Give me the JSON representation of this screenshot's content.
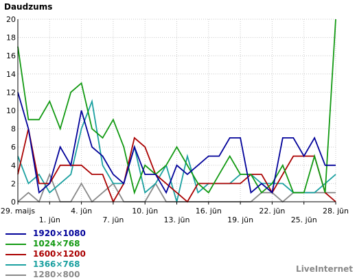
{
  "chart_data": {
    "type": "line",
    "title": "Daudzums",
    "ylim": [
      0,
      20
    ],
    "yticks": [
      0,
      2,
      4,
      6,
      8,
      10,
      12,
      14,
      16,
      18,
      20
    ],
    "x_count": 31,
    "xticks": [
      {
        "index": 0,
        "label": "29. maijs",
        "row": 0
      },
      {
        "index": 3,
        "label": "1. jūn",
        "row": 1
      },
      {
        "index": 6,
        "label": "4. jūn",
        "row": 0
      },
      {
        "index": 9,
        "label": "7. jūn",
        "row": 1
      },
      {
        "index": 12,
        "label": "10. jūn",
        "row": 0
      },
      {
        "index": 15,
        "label": "13. jūn",
        "row": 1
      },
      {
        "index": 18,
        "label": "16. jūn",
        "row": 0
      },
      {
        "index": 21,
        "label": "19. jūn",
        "row": 1
      },
      {
        "index": 24,
        "label": "22. jūn",
        "row": 0
      },
      {
        "index": 27,
        "label": "25. jūn",
        "row": 1
      },
      {
        "index": 30,
        "label": "28. jūn",
        "row": 0
      }
    ],
    "grid": true,
    "legend_position": "bottom-left",
    "series": [
      {
        "name": "1280×800",
        "color": "#888888",
        "values": [
          0,
          1,
          0,
          3,
          0,
          0,
          2,
          0,
          1,
          2,
          0,
          0,
          0,
          2,
          0,
          0,
          0,
          0,
          0,
          0,
          0,
          0,
          0,
          1,
          1,
          0,
          1,
          1,
          1,
          1,
          1
        ]
      },
      {
        "name": "1366×768",
        "color": "#1aa0a0",
        "values": [
          5,
          2,
          3,
          1,
          2,
          3,
          8,
          11,
          4,
          2,
          2,
          6,
          1,
          2,
          4,
          0,
          5,
          1,
          2,
          2,
          2,
          3,
          3,
          2,
          2,
          2,
          1,
          1,
          1,
          2,
          3
        ]
      },
      {
        "name": "1600×1200",
        "color": "#aa0000",
        "values": [
          3,
          8,
          2,
          2,
          4,
          4,
          4,
          3,
          3,
          0,
          2,
          7,
          6,
          3,
          2,
          1,
          0,
          2,
          2,
          2,
          2,
          2,
          3,
          3,
          1,
          3,
          5,
          5,
          5,
          1,
          0
        ]
      },
      {
        "name": "1024×768",
        "color": "#119911",
        "values": [
          17,
          9,
          9,
          11,
          8,
          12,
          13,
          8,
          7,
          9,
          6,
          1,
          4,
          3,
          4,
          6,
          4,
          2,
          1,
          3,
          5,
          3,
          3,
          1,
          2,
          4,
          1,
          1,
          5,
          1,
          20
        ]
      },
      {
        "name": "1920×1080",
        "color": "#000099",
        "values": [
          12,
          8,
          1,
          2,
          6,
          4,
          10,
          6,
          5,
          3,
          2,
          6,
          3,
          3,
          1,
          4,
          3,
          4,
          5,
          5,
          7,
          7,
          1,
          2,
          1,
          7,
          7,
          5,
          7,
          4,
          4
        ]
      }
    ]
  },
  "legend": {
    "items": [
      {
        "label": "1920×1080",
        "color": "#000099"
      },
      {
        "label": "1024×768",
        "color": "#119911"
      },
      {
        "label": "1600×1200",
        "color": "#aa0000"
      },
      {
        "label": "1366×768",
        "color": "#1aa0a0"
      },
      {
        "label": "1280×800",
        "color": "#888888"
      }
    ]
  },
  "credit": "LiveInternet"
}
